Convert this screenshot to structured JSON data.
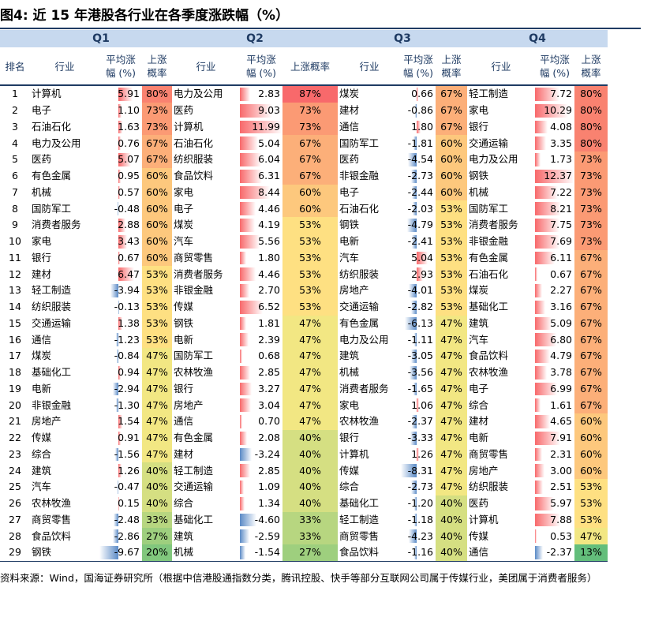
{
  "title": "图4:  近 15 年港股各行业在各季度涨跌幅（%）",
  "quarters": [
    "Q1",
    "Q2",
    "Q3",
    "Q4"
  ],
  "headers": {
    "rank": "排名",
    "industry": "行业",
    "avg_line1": "平均涨",
    "avg_line2": "幅 (%)",
    "prob_line1": "上涨",
    "prob_line2": "概率",
    "prob_full": "上涨概率"
  },
  "colors": {
    "bar_positive": "#f8696b",
    "bar_negative": "#5a8ac6",
    "prob_high": "#f8696b",
    "prob_mid": "#ffeb84",
    "prob_low": "#63be7b"
  },
  "rows": [
    {
      "rank": "1",
      "q": [
        {
          "ind": "计算机",
          "avg": "5.91",
          "prob": "80%"
        },
        {
          "ind": "电力及公用",
          "avg": "2.83",
          "prob": "87%"
        },
        {
          "ind": "煤炭",
          "avg": "0.66",
          "prob": "67%"
        },
        {
          "ind": "轻工制造",
          "avg": "7.72",
          "prob": "80%"
        }
      ]
    },
    {
      "rank": "2",
      "q": [
        {
          "ind": "电子",
          "avg": "1.10",
          "prob": "73%"
        },
        {
          "ind": "医药",
          "avg": "9.03",
          "prob": "73%"
        },
        {
          "ind": "建材",
          "avg": "-0.86",
          "prob": "67%"
        },
        {
          "ind": "家电",
          "avg": "10.29",
          "prob": "80%"
        }
      ]
    },
    {
      "rank": "3",
      "q": [
        {
          "ind": "石油石化",
          "avg": "1.63",
          "prob": "73%"
        },
        {
          "ind": "计算机",
          "avg": "11.99",
          "prob": "73%"
        },
        {
          "ind": "通信",
          "avg": "1.80",
          "prob": "67%"
        },
        {
          "ind": "银行",
          "avg": "4.08",
          "prob": "80%"
        }
      ]
    },
    {
      "rank": "4",
      "q": [
        {
          "ind": "电力及公用",
          "avg": "0.76",
          "prob": "67%"
        },
        {
          "ind": "石油石化",
          "avg": "5.04",
          "prob": "67%"
        },
        {
          "ind": "国防军工",
          "avg": "-1.81",
          "prob": "60%"
        },
        {
          "ind": "交通运输",
          "avg": "3.35",
          "prob": "80%"
        }
      ]
    },
    {
      "rank": "5",
      "q": [
        {
          "ind": "医药",
          "avg": "5.07",
          "prob": "67%"
        },
        {
          "ind": "纺织服装",
          "avg": "6.04",
          "prob": "67%"
        },
        {
          "ind": "医药",
          "avg": "-4.54",
          "prob": "60%"
        },
        {
          "ind": "电力及公用",
          "avg": "1.73",
          "prob": "73%"
        }
      ]
    },
    {
      "rank": "6",
      "q": [
        {
          "ind": "有色金属",
          "avg": "0.95",
          "prob": "60%"
        },
        {
          "ind": "食品饮料",
          "avg": "6.31",
          "prob": "67%"
        },
        {
          "ind": "非银金融",
          "avg": "-2.73",
          "prob": "60%"
        },
        {
          "ind": "钢铁",
          "avg": "12.37",
          "prob": "73%"
        }
      ]
    },
    {
      "rank": "7",
      "q": [
        {
          "ind": "机械",
          "avg": "0.57",
          "prob": "60%"
        },
        {
          "ind": "家电",
          "avg": "8.44",
          "prob": "60%"
        },
        {
          "ind": "电子",
          "avg": "-2.44",
          "prob": "60%"
        },
        {
          "ind": "机械",
          "avg": "7.22",
          "prob": "73%"
        }
      ]
    },
    {
      "rank": "8",
      "q": [
        {
          "ind": "国防军工",
          "avg": "-0.48",
          "prob": "60%"
        },
        {
          "ind": "电子",
          "avg": "4.46",
          "prob": "60%"
        },
        {
          "ind": "石油石化",
          "avg": "-2.03",
          "prob": "53%"
        },
        {
          "ind": "国防军工",
          "avg": "8.21",
          "prob": "73%"
        }
      ]
    },
    {
      "rank": "9",
      "q": [
        {
          "ind": "消费者服务",
          "avg": "2.88",
          "prob": "60%"
        },
        {
          "ind": "煤炭",
          "avg": "4.19",
          "prob": "53%"
        },
        {
          "ind": "钢铁",
          "avg": "-4.79",
          "prob": "53%"
        },
        {
          "ind": "消费者服务",
          "avg": "7.75",
          "prob": "73%"
        }
      ]
    },
    {
      "rank": "10",
      "q": [
        {
          "ind": "家电",
          "avg": "3.43",
          "prob": "60%"
        },
        {
          "ind": "汽车",
          "avg": "5.56",
          "prob": "53%"
        },
        {
          "ind": "电新",
          "avg": "-2.41",
          "prob": "53%"
        },
        {
          "ind": "非银金融",
          "avg": "7.69",
          "prob": "73%"
        }
      ]
    },
    {
      "rank": "11",
      "q": [
        {
          "ind": "银行",
          "avg": "0.67",
          "prob": "60%"
        },
        {
          "ind": "商贸零售",
          "avg": "1.80",
          "prob": "53%"
        },
        {
          "ind": "汽车",
          "avg": "5.04",
          "prob": "53%"
        },
        {
          "ind": "有色金属",
          "avg": "6.11",
          "prob": "67%"
        }
      ]
    },
    {
      "rank": "12",
      "q": [
        {
          "ind": "建材",
          "avg": "6.47",
          "prob": "53%"
        },
        {
          "ind": "消费者服务",
          "avg": "4.46",
          "prob": "53%"
        },
        {
          "ind": "纺织服装",
          "avg": "2.93",
          "prob": "53%"
        },
        {
          "ind": "石油石化",
          "avg": "0.67",
          "prob": "67%"
        }
      ]
    },
    {
      "rank": "13",
      "q": [
        {
          "ind": "轻工制造",
          "avg": "-3.94",
          "prob": "53%"
        },
        {
          "ind": "非银金融",
          "avg": "2.70",
          "prob": "53%"
        },
        {
          "ind": "房地产",
          "avg": "-4.01",
          "prob": "53%"
        },
        {
          "ind": "煤炭",
          "avg": "2.27",
          "prob": "67%"
        }
      ]
    },
    {
      "rank": "14",
      "q": [
        {
          "ind": "纺织服装",
          "avg": "-0.13",
          "prob": "53%"
        },
        {
          "ind": "传媒",
          "avg": "6.52",
          "prob": "53%"
        },
        {
          "ind": "交通运输",
          "avg": "-2.82",
          "prob": "53%"
        },
        {
          "ind": "基础化工",
          "avg": "3.16",
          "prob": "67%"
        }
      ]
    },
    {
      "rank": "15",
      "q": [
        {
          "ind": "交通运输",
          "avg": "1.38",
          "prob": "53%"
        },
        {
          "ind": "钢铁",
          "avg": "1.81",
          "prob": "47%"
        },
        {
          "ind": "有色金属",
          "avg": "-6.13",
          "prob": "47%"
        },
        {
          "ind": "建筑",
          "avg": "5.09",
          "prob": "67%"
        }
      ]
    },
    {
      "rank": "16",
      "q": [
        {
          "ind": "通信",
          "avg": "-1.23",
          "prob": "53%"
        },
        {
          "ind": "电新",
          "avg": "2.39",
          "prob": "47%"
        },
        {
          "ind": "电力及公用",
          "avg": "-1.11",
          "prob": "47%"
        },
        {
          "ind": "汽车",
          "avg": "6.80",
          "prob": "67%"
        }
      ]
    },
    {
      "rank": "17",
      "q": [
        {
          "ind": "煤炭",
          "avg": "-0.84",
          "prob": "47%"
        },
        {
          "ind": "国防军工",
          "avg": "0.68",
          "prob": "47%"
        },
        {
          "ind": "建筑",
          "avg": "-3.05",
          "prob": "47%"
        },
        {
          "ind": "食品饮料",
          "avg": "4.79",
          "prob": "67%"
        }
      ]
    },
    {
      "rank": "18",
      "q": [
        {
          "ind": "基础化工",
          "avg": "0.94",
          "prob": "47%"
        },
        {
          "ind": "农林牧渔",
          "avg": "2.85",
          "prob": "47%"
        },
        {
          "ind": "机械",
          "avg": "-3.56",
          "prob": "47%"
        },
        {
          "ind": "农林牧渔",
          "avg": "3.78",
          "prob": "67%"
        }
      ]
    },
    {
      "rank": "19",
      "q": [
        {
          "ind": "电新",
          "avg": "-2.94",
          "prob": "47%"
        },
        {
          "ind": "银行",
          "avg": "3.27",
          "prob": "47%"
        },
        {
          "ind": "消费者服务",
          "avg": "-1.65",
          "prob": "47%"
        },
        {
          "ind": "电子",
          "avg": "6.99",
          "prob": "67%"
        }
      ]
    },
    {
      "rank": "20",
      "q": [
        {
          "ind": "非银金融",
          "avg": "-1.30",
          "prob": "47%"
        },
        {
          "ind": "房地产",
          "avg": "3.04",
          "prob": "47%"
        },
        {
          "ind": "家电",
          "avg": "1.06",
          "prob": "47%"
        },
        {
          "ind": "综合",
          "avg": "1.61",
          "prob": "67%"
        }
      ]
    },
    {
      "rank": "21",
      "q": [
        {
          "ind": "房地产",
          "avg": "1.54",
          "prob": "47%"
        },
        {
          "ind": "通信",
          "avg": "0.70",
          "prob": "47%"
        },
        {
          "ind": "农林牧渔",
          "avg": "-2.37",
          "prob": "47%"
        },
        {
          "ind": "建材",
          "avg": "4.65",
          "prob": "60%"
        }
      ]
    },
    {
      "rank": "22",
      "q": [
        {
          "ind": "传媒",
          "avg": "0.91",
          "prob": "47%"
        },
        {
          "ind": "有色金属",
          "avg": "2.08",
          "prob": "40%"
        },
        {
          "ind": "银行",
          "avg": "-3.33",
          "prob": "47%"
        },
        {
          "ind": "电新",
          "avg": "7.91",
          "prob": "60%"
        }
      ]
    },
    {
      "rank": "23",
      "q": [
        {
          "ind": "综合",
          "avg": "-1.56",
          "prob": "47%"
        },
        {
          "ind": "建材",
          "avg": "-3.24",
          "prob": "40%"
        },
        {
          "ind": "计算机",
          "avg": "1.26",
          "prob": "47%"
        },
        {
          "ind": "商贸零售",
          "avg": "2.31",
          "prob": "60%"
        }
      ]
    },
    {
      "rank": "24",
      "q": [
        {
          "ind": "建筑",
          "avg": "1.26",
          "prob": "40%"
        },
        {
          "ind": "轻工制造",
          "avg": "2.85",
          "prob": "40%"
        },
        {
          "ind": "传媒",
          "avg": "-8.31",
          "prob": "47%"
        },
        {
          "ind": "房地产",
          "avg": "3.00",
          "prob": "60%"
        }
      ]
    },
    {
      "rank": "25",
      "q": [
        {
          "ind": "汽车",
          "avg": "-0.47",
          "prob": "40%"
        },
        {
          "ind": "交通运输",
          "avg": "1.09",
          "prob": "40%"
        },
        {
          "ind": "综合",
          "avg": "-2.73",
          "prob": "47%"
        },
        {
          "ind": "纺织服装",
          "avg": "2.51",
          "prob": "53%"
        }
      ]
    },
    {
      "rank": "26",
      "q": [
        {
          "ind": "农林牧渔",
          "avg": "0.15",
          "prob": "40%"
        },
        {
          "ind": "综合",
          "avg": "1.34",
          "prob": "40%"
        },
        {
          "ind": "基础化工",
          "avg": "-1.20",
          "prob": "40%"
        },
        {
          "ind": "医药",
          "avg": "5.97",
          "prob": "53%"
        }
      ]
    },
    {
      "rank": "27",
      "q": [
        {
          "ind": "商贸零售",
          "avg": "-2.48",
          "prob": "33%"
        },
        {
          "ind": "基础化工",
          "avg": "-4.60",
          "prob": "33%"
        },
        {
          "ind": "轻工制造",
          "avg": "-1.18",
          "prob": "40%"
        },
        {
          "ind": "计算机",
          "avg": "7.88",
          "prob": "53%"
        }
      ]
    },
    {
      "rank": "28",
      "q": [
        {
          "ind": "食品饮料",
          "avg": "-2.86",
          "prob": "27%"
        },
        {
          "ind": "建筑",
          "avg": "-2.59",
          "prob": "33%"
        },
        {
          "ind": "商贸零售",
          "avg": "-4.23",
          "prob": "40%"
        },
        {
          "ind": "传媒",
          "avg": "0.53",
          "prob": "47%"
        }
      ]
    },
    {
      "rank": "29",
      "q": [
        {
          "ind": "钢铁",
          "avg": "-9.67",
          "prob": "20%"
        },
        {
          "ind": "机械",
          "avg": "-1.54",
          "prob": "27%"
        },
        {
          "ind": "食品饮料",
          "avg": "-1.16",
          "prob": "40%"
        },
        {
          "ind": "通信",
          "avg": "-2.37",
          "prob": "13%"
        }
      ]
    }
  ],
  "source": "资料来源：Wind，国海证券研究所（根据中信港股通指数分类，腾讯控股、快手等部分互联网公司属于传媒行业，美团属于消费者服务）"
}
